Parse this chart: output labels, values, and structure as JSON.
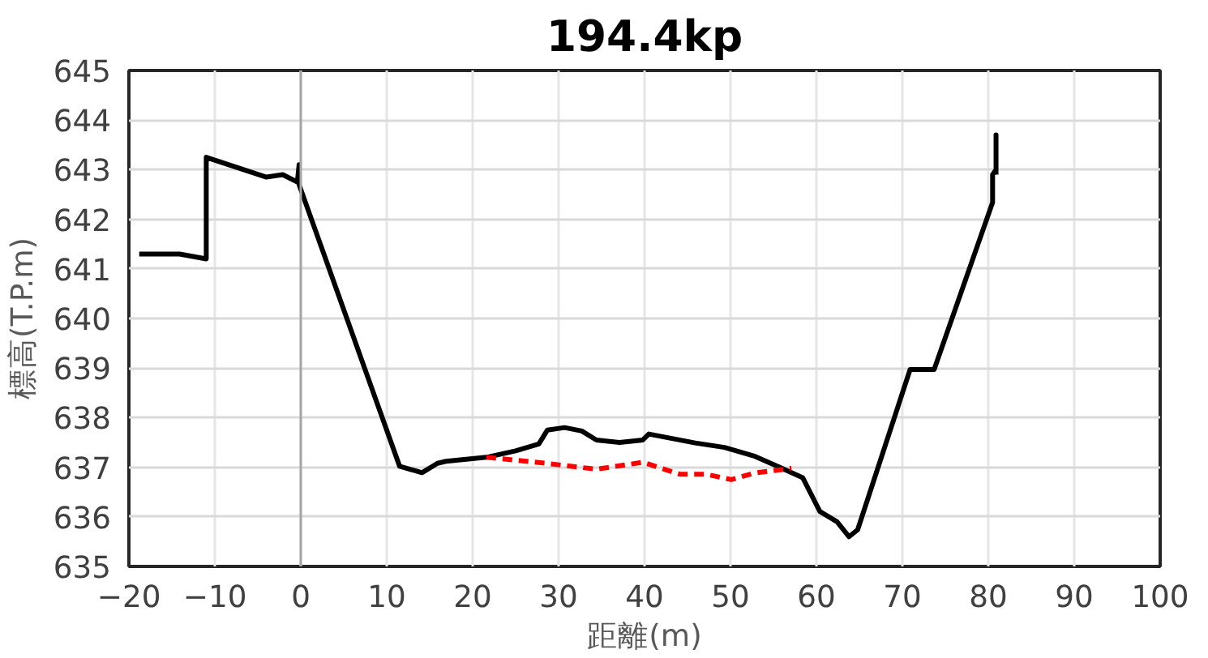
{
  "chart_data": {
    "type": "line",
    "title": "194.4kp",
    "xlabel": "距離(m)",
    "ylabel": "標高(T.P.m)",
    "xlim": [
      -20,
      100
    ],
    "xticks": [
      -20,
      -10,
      0,
      10,
      20,
      30,
      40,
      50,
      60,
      70,
      80,
      90,
      100
    ],
    "ylim": [
      635,
      645
    ],
    "yticks": [
      635,
      636,
      637,
      638,
      639,
      640,
      641,
      642,
      643,
      644,
      645
    ],
    "grid": true,
    "marker": "none",
    "ref_lines": [
      {
        "axis": "x",
        "value": 0,
        "color": "#a6a6a6"
      }
    ],
    "series": [
      {
        "color": "#000000",
        "line_style": "solid",
        "x": [
          -18.8,
          -14.1,
          -11.0,
          -11.0,
          -4.0,
          -2.1,
          -0.4,
          -0.2,
          -0.2,
          11.5,
          14.1,
          15.9,
          16.9,
          21.6,
          25.0,
          27.7,
          28.7,
          30.7,
          32.7,
          34.4,
          37.1,
          39.8,
          40.5,
          45.9,
          49.3,
          52.7,
          55.7,
          58.4,
          60.4,
          62.4,
          63.8,
          64.8,
          70.9,
          73.7,
          80.5,
          80.5,
          80.9,
          80.9,
          80.9
        ],
        "values": [
          641.3,
          641.3,
          641.2,
          643.25,
          642.85,
          642.9,
          642.75,
          643.1,
          642.7,
          637.02,
          636.89,
          637.08,
          637.12,
          637.2,
          637.33,
          637.47,
          637.75,
          637.8,
          637.73,
          637.55,
          637.5,
          637.55,
          637.67,
          637.49,
          637.4,
          637.23,
          637.0,
          636.79,
          636.11,
          635.9,
          635.6,
          635.74,
          638.97,
          638.97,
          642.34,
          642.9,
          643.0,
          643.7,
          642.9
        ]
      },
      {
        "color": "#ff0000",
        "line_style": "dashed",
        "x": [
          21.6,
          28.5,
          34.4,
          39.8,
          44.1,
          47.1,
          50.1,
          52.7,
          57.1
        ],
        "values": [
          637.2,
          637.08,
          636.96,
          637.1,
          636.86,
          636.86,
          636.75,
          636.88,
          636.98
        ]
      }
    ]
  }
}
